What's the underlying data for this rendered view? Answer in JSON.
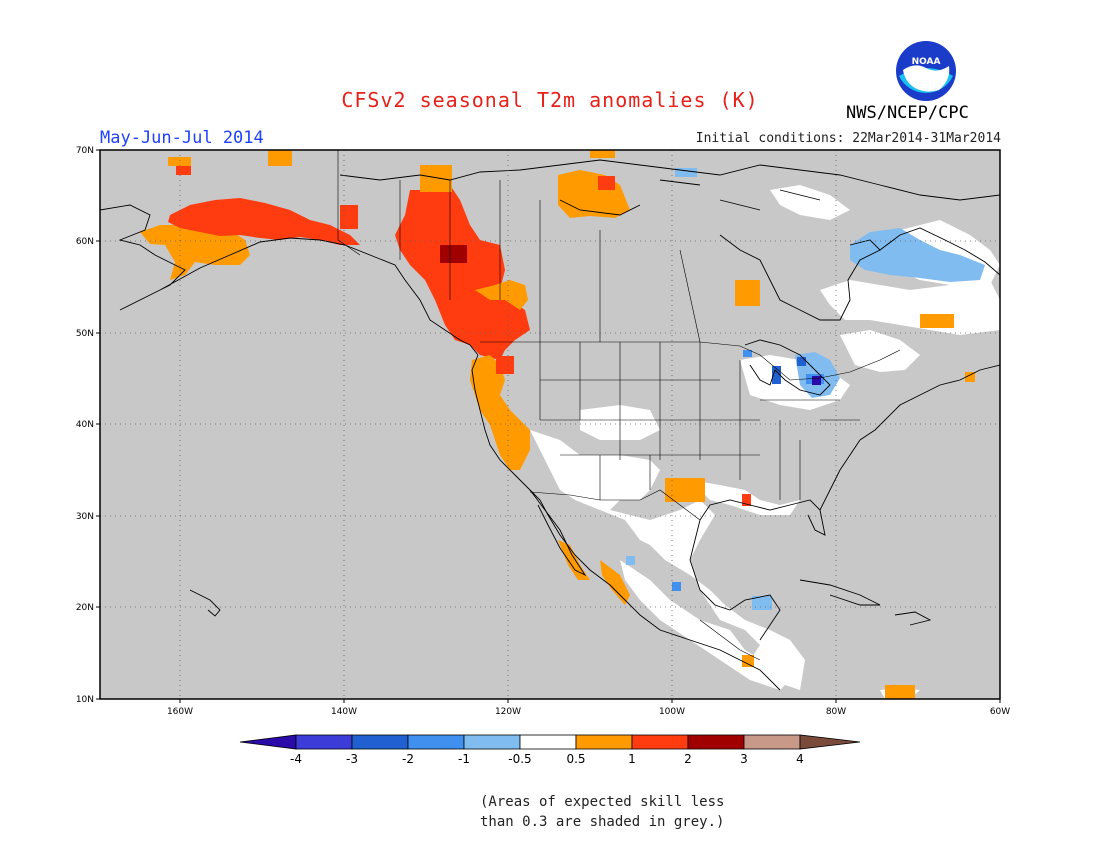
{
  "header": {
    "title": "CFSv2 seasonal T2m anomalies (K)",
    "period": "May-Jun-Jul 2014",
    "initial_conditions": "Initial conditions: 22Mar2014-31Mar2014",
    "agency": "NWS/NCEP/CPC",
    "logo_text": "NOAA"
  },
  "map": {
    "lon_range": [
      -171,
      -60
    ],
    "lat_range": [
      10,
      70
    ],
    "lon_ticks": [
      "160W",
      "140W",
      "120W",
      "100W",
      "80W",
      "60W"
    ],
    "lat_ticks": [
      "70N",
      "60N",
      "50N",
      "40N",
      "30N",
      "20N",
      "10N"
    ],
    "background_color": "#c8c8c8",
    "no_anomaly_color": "#ffffff",
    "gridlines": "dotted",
    "anomaly_cells_K": [
      {
        "lon": -158,
        "lat": 63,
        "value": 1.5
      },
      {
        "lon": -154,
        "lat": 62,
        "value": 1.5
      },
      {
        "lon": -150,
        "lat": 62,
        "value": 1.5
      },
      {
        "lon": -146,
        "lat": 62,
        "value": 1.5
      },
      {
        "lon": -142,
        "lat": 61,
        "value": 1.5
      },
      {
        "lon": -138,
        "lat": 61,
        "value": 1.5
      },
      {
        "lon": -134,
        "lat": 60,
        "value": 1.5
      },
      {
        "lon": -130,
        "lat": 59,
        "value": 1.5
      },
      {
        "lon": -126,
        "lat": 58,
        "value": 2.5
      },
      {
        "lon": -126,
        "lat": 56,
        "value": 1.5
      },
      {
        "lon": -124,
        "lat": 54,
        "value": 1.5
      },
      {
        "lon": -122,
        "lat": 51,
        "value": 1.5
      },
      {
        "lon": -128,
        "lat": 62,
        "value": 1.5
      },
      {
        "lon": -112,
        "lat": 64,
        "value": 0.75
      },
      {
        "lon": -158,
        "lat": 58,
        "value": 0.75
      },
      {
        "lon": -123,
        "lat": 44,
        "value": 0.75
      },
      {
        "lon": -121,
        "lat": 40,
        "value": 0.75
      },
      {
        "lon": -119,
        "lat": 36,
        "value": 0.75
      },
      {
        "lon": -101,
        "lat": 32,
        "value": 0.75
      },
      {
        "lon": -88,
        "lat": 54,
        "value": 0.75
      },
      {
        "lon": -82,
        "lat": 44,
        "value": -3.5
      },
      {
        "lon": -84,
        "lat": 45,
        "value": -2.5
      },
      {
        "lon": -68,
        "lat": 58,
        "value": -0.75
      },
      {
        "lon": -76,
        "lat": 59,
        "value": -0.75
      },
      {
        "lon": -95,
        "lat": 31,
        "value": 0.0
      },
      {
        "lon": -103,
        "lat": 24,
        "value": 0.0
      }
    ]
  },
  "colorbar": {
    "labels": [
      "-4",
      "-3",
      "-2",
      "-1",
      "-0.5",
      "0.5",
      "1",
      "2",
      "3",
      "4"
    ],
    "colors": [
      "#2a0aa8",
      "#3c3cd8",
      "#2060d0",
      "#4090f0",
      "#80bcf0",
      "#ffffff",
      "#ff9a00",
      "#ff3c10",
      "#a00000",
      "#c89888",
      "#7a4a3a"
    ]
  },
  "footnote": {
    "line1": "(Areas of expected skill less",
    "line2": "than 0.3 are shaded in grey.)"
  }
}
